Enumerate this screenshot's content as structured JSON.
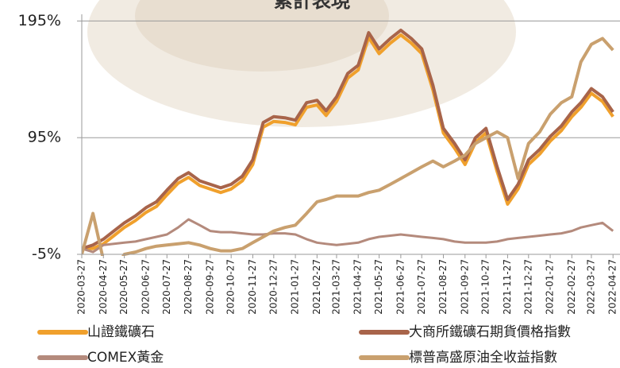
{
  "chart_data": {
    "type": "line",
    "title": "累計表現",
    "x": [
      "2020-03-27",
      "2020-04-12",
      "2020-04-27",
      "2020-05-12",
      "2020-05-27",
      "2020-06-12",
      "2020-06-27",
      "2020-07-12",
      "2020-07-27",
      "2020-08-12",
      "2020-08-27",
      "2020-09-12",
      "2020-09-27",
      "2020-10-12",
      "2020-10-27",
      "2020-11-12",
      "2020-11-27",
      "2020-12-12",
      "2020-12-27",
      "2021-01-12",
      "2021-01-27",
      "2021-02-12",
      "2021-02-27",
      "2021-03-12",
      "2021-03-27",
      "2021-04-12",
      "2021-04-27",
      "2021-05-12",
      "2021-05-27",
      "2021-06-12",
      "2021-06-27",
      "2021-07-12",
      "2021-07-27",
      "2021-08-12",
      "2021-08-27",
      "2021-09-12",
      "2021-09-27",
      "2021-10-12",
      "2021-10-27",
      "2021-11-12",
      "2021-11-27",
      "2021-12-12",
      "2021-12-27",
      "2022-01-12",
      "2022-01-27",
      "2022-02-12",
      "2022-02-27",
      "2022-03-12",
      "2022-03-27",
      "2022-04-12",
      "2022-04-27"
    ],
    "xlim": [
      "2020-03-27",
      "2022-05-07"
    ],
    "xticks": [
      "2020-03-27",
      "2020-04-27",
      "2020-05-27",
      "2020-06-27",
      "2020-07-27",
      "2020-08-27",
      "2020-09-27",
      "2020-10-27",
      "2020-11-27",
      "2020-12-27",
      "2021-01-27",
      "2021-02-27",
      "2021-03-27",
      "2021-04-27",
      "2021-05-27",
      "2021-06-27",
      "2021-07-27",
      "2021-08-27",
      "2021-09-27",
      "2021-10-27",
      "2021-11-27",
      "2021-12-27",
      "2022-01-27",
      "2022-02-27",
      "2022-03-27",
      "2022-04-27"
    ],
    "ylim": [
      -5,
      198
    ],
    "yticks": [
      {
        "value": -5,
        "label": "-5%"
      },
      {
        "value": 95,
        "label": "95%"
      },
      {
        "value": 195,
        "label": "195%"
      }
    ],
    "grid": true,
    "series": [
      {
        "name": "山證鐵礦石",
        "color": "#f0a02c",
        "values": [
          0,
          0,
          4,
          11,
          18,
          24,
          31,
          36,
          46,
          56,
          61,
          54,
          51,
          48,
          51,
          58,
          72,
          104,
          109,
          108,
          106,
          121,
          123,
          114,
          126,
          146,
          153,
          181,
          167,
          176,
          183,
          176,
          167,
          136,
          99,
          86,
          72,
          91,
          99,
          66,
          38,
          51,
          72,
          81,
          92,
          101,
          113,
          121,
          133,
          126,
          113
        ]
      },
      {
        "name": "大商所鐵礦石期貨價格指數",
        "color": "#a8644a",
        "values": [
          0,
          3,
          8,
          15,
          22,
          28,
          35,
          40,
          50,
          60,
          65,
          58,
          55,
          52,
          55,
          62,
          76,
          108,
          113,
          112,
          110,
          125,
          127,
          118,
          130,
          150,
          157,
          185,
          171,
          180,
          187,
          180,
          171,
          140,
          103,
          90,
          76,
          95,
          103,
          70,
          42,
          55,
          76,
          85,
          96,
          105,
          117,
          125,
          137,
          130,
          117
        ]
      },
      {
        "name": "COMEX黃金",
        "color": "#b48a7c",
        "values": [
          0,
          -3,
          3,
          4,
          5,
          6,
          8,
          10,
          12,
          18,
          25,
          20,
          15,
          14,
          14,
          13,
          12,
          12,
          13,
          13,
          12,
          8,
          5,
          4,
          3,
          4,
          5,
          8,
          10,
          11,
          12,
          11,
          10,
          9,
          8,
          6,
          5,
          5,
          5,
          6,
          8,
          9,
          10,
          11,
          12,
          13,
          15,
          18,
          20,
          22,
          15
        ]
      },
      {
        "name": "標普高盛原油全收益指數",
        "color": "#c9a06e",
        "values": [
          -5,
          30,
          -10,
          -20,
          -5,
          -3,
          0,
          2,
          3,
          4,
          5,
          3,
          0,
          -2,
          -2,
          0,
          5,
          10,
          15,
          18,
          20,
          30,
          40,
          42,
          45,
          45,
          45,
          48,
          50,
          55,
          60,
          65,
          70,
          75,
          70,
          75,
          80,
          90,
          95,
          100,
          95,
          60,
          90,
          100,
          115,
          125,
          130,
          160,
          175,
          180,
          170
        ]
      }
    ]
  }
}
